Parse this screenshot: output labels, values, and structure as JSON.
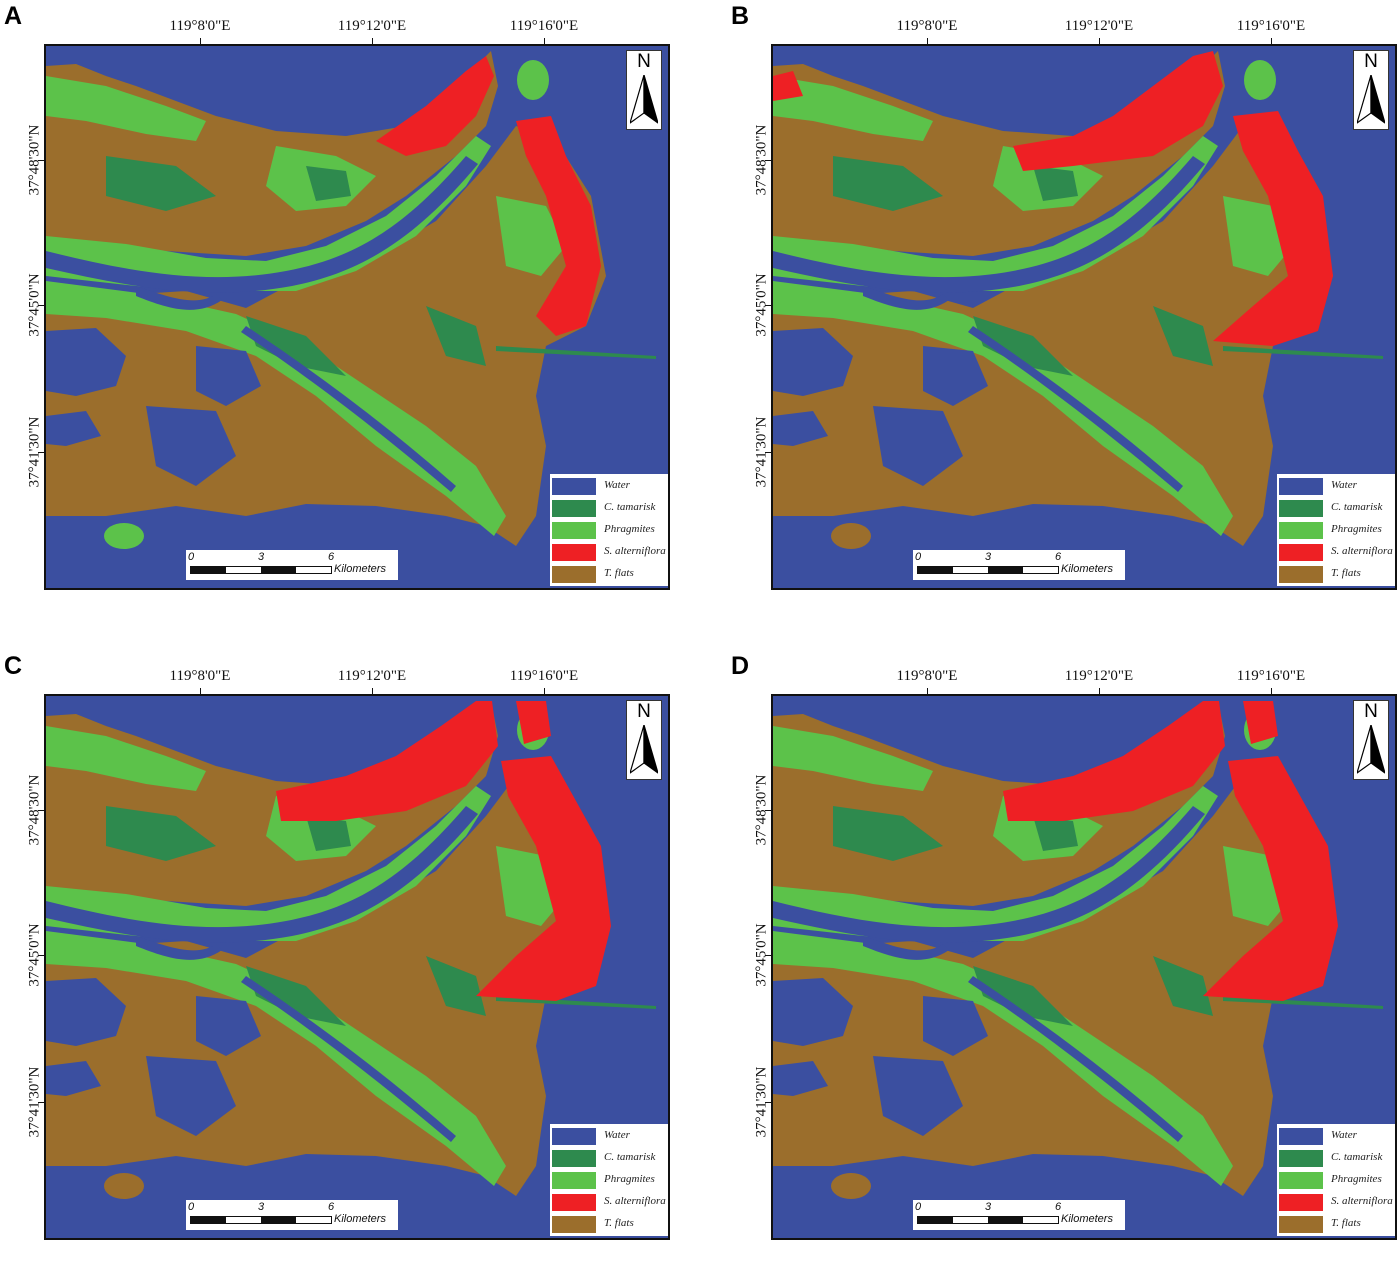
{
  "panels": [
    {
      "letter": "A",
      "red_level": 1
    },
    {
      "letter": "B",
      "red_level": 2
    },
    {
      "letter": "C",
      "red_level": 3
    },
    {
      "letter": "D",
      "red_level": 3
    }
  ],
  "longitude_labels": [
    "119°8'0\"E",
    "119°12'0\"E",
    "119°16'0\"E"
  ],
  "latitude_labels": [
    "37°48'30\"N",
    "37°45'0\"N",
    "37°41'30\"N"
  ],
  "north_arrow": {
    "label": "N",
    "icon": "north-arrow-icon"
  },
  "legend": [
    {
      "label": "Water",
      "color": "#3b4fa0"
    },
    {
      "label": "C. tamarisk",
      "color": "#2e8a4e"
    },
    {
      "label": "Phragmites",
      "color": "#5cc24a"
    },
    {
      "label": "S. alterniflora",
      "color": "#ee2024"
    },
    {
      "label": "T. flats",
      "color": "#9b6e2c"
    }
  ],
  "scale_bar": {
    "ticks": [
      "0",
      "3",
      "6"
    ],
    "unit": "Kilometers"
  }
}
